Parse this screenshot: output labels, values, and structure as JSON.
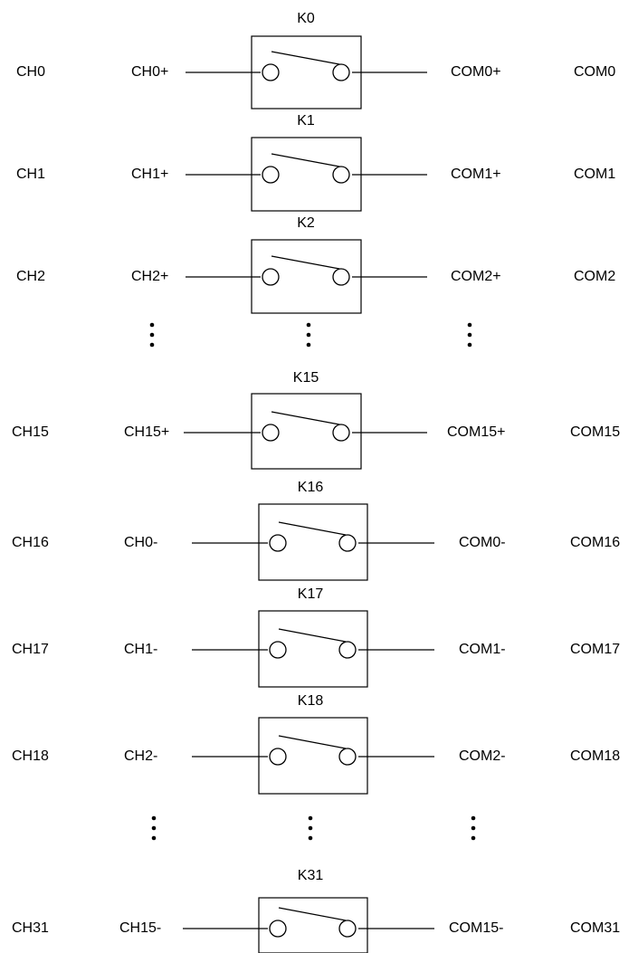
{
  "rows": [
    {
      "relay": "K0",
      "channel": "CH0",
      "input": "CH0+",
      "output": "COM0+",
      "common": "COM0"
    },
    {
      "relay": "K1",
      "channel": "CH1",
      "input": "CH1+",
      "output": "COM1+",
      "common": "COM1"
    },
    {
      "relay": "K2",
      "channel": "CH2",
      "input": "CH2+",
      "output": "COM2+",
      "common": "COM2"
    },
    {
      "relay": "K15",
      "channel": "CH15",
      "input": "CH15+",
      "output": "COM15+",
      "common": "COM15"
    },
    {
      "relay": "K16",
      "channel": "CH16",
      "input": "CH0-",
      "output": "COM0-",
      "common": "COM16"
    },
    {
      "relay": "K17",
      "channel": "CH17",
      "input": "CH1-",
      "output": "COM1-",
      "common": "COM17"
    },
    {
      "relay": "K18",
      "channel": "CH18",
      "input": "CH2-",
      "output": "COM2-",
      "common": "COM18"
    },
    {
      "relay": "K31",
      "channel": "CH31",
      "input": "CH15-",
      "output": "COM15-",
      "common": "COM31"
    }
  ],
  "ellipsis_groups": 2
}
